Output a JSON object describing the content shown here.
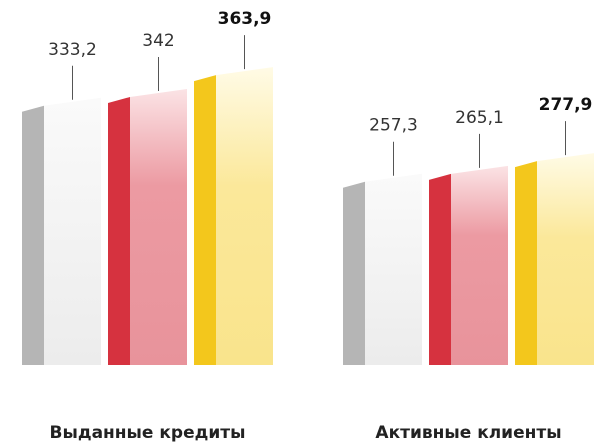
{
  "chart_data": {
    "type": "bar",
    "categories": [
      "Выданные кредиты",
      "Активные клиенты"
    ],
    "series": [
      {
        "color": "#b5b5b5",
        "values": [
          333.2,
          257.3
        ],
        "value_labels": [
          "333,2",
          "257,3"
        ],
        "bold": false
      },
      {
        "color": "#d6323f",
        "values": [
          342,
          265.1
        ],
        "value_labels": [
          "342",
          "265,1"
        ],
        "bold": false
      },
      {
        "color": "#f3c71c",
        "values": [
          363.9,
          277.9
        ],
        "value_labels": [
          "363,9",
          "277,9"
        ],
        "bold": true
      }
    ],
    "ylim": [
      70,
      435
    ]
  }
}
